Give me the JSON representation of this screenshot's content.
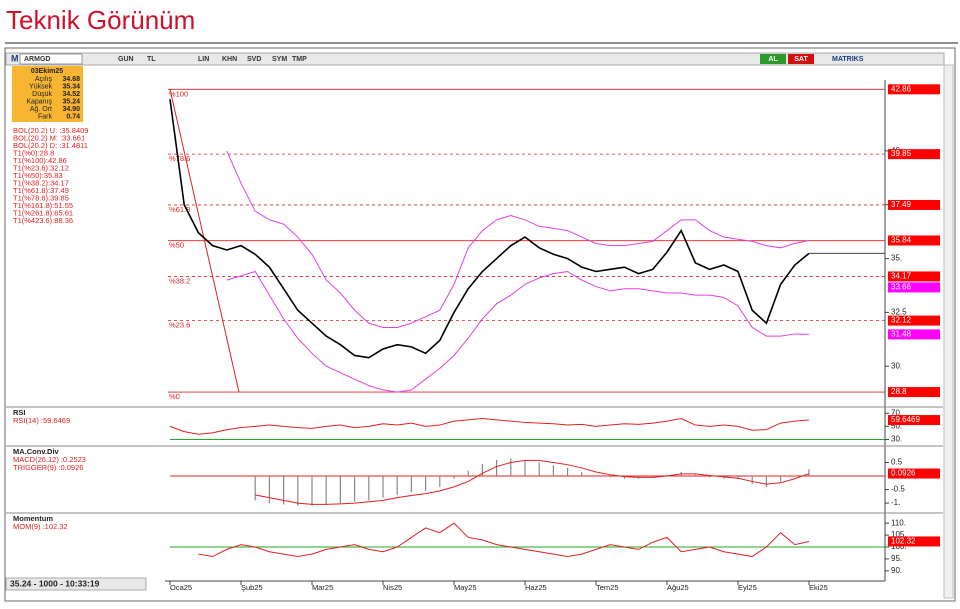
{
  "header": {
    "title": "Teknik Görünüm"
  },
  "toolbar": {
    "logo": "M",
    "symbol": "ARMGD",
    "buttons": [
      "GUN",
      "TL",
      "LIN",
      "KHN",
      "SVD",
      "SYM",
      "TMP"
    ],
    "actions": [
      "AL",
      "SAT"
    ],
    "brand": "MATRIKS"
  },
  "info": {
    "date": "03Ekim25",
    "rows": [
      [
        "Açılış",
        "34.68"
      ],
      [
        "Yüksek",
        "35.34"
      ],
      [
        "Düşük",
        "34.52"
      ],
      [
        "Kapanış",
        "35.24"
      ],
      [
        "Ağ. Ort",
        "34.90"
      ],
      [
        "Fark",
        "0.74"
      ]
    ]
  },
  "legend": [
    "BOL(20.2) U: :35.8409",
    "BOL(20.2) M: :33.661",
    "BOL(20.2) D: :31.4811",
    "T1(%0):28.8",
    "T1(%100):42.86",
    "T1(%23.6):32.12",
    "T1(%50):35.83",
    "T1(%38.2):34.17",
    "T1(%61.8):37.49",
    "T1(%78.6):39.85",
    "T1(%161.8):51.55",
    "T1(%261.8):65.61",
    "T1(%423.6):88.36"
  ],
  "status": "35.24 - 1000 - 10:33:19",
  "chart_data": [
    {
      "type": "line",
      "categories": [
        "Oca25",
        null,
        null,
        null,
        null,
        "Şub25",
        null,
        null,
        null,
        null,
        "Mar25",
        null,
        null,
        null,
        null,
        "Nis25",
        null,
        null,
        null,
        null,
        "May25",
        null,
        null,
        null,
        null,
        "Haz25",
        null,
        null,
        null,
        null,
        "Tem25",
        null,
        null,
        null,
        null,
        "Ağu25",
        null,
        null,
        null,
        null,
        "Eyl25",
        null,
        null,
        null,
        null,
        "Eki25"
      ],
      "series": [
        {
          "color": "#000000",
          "values": [
            42.4,
            37.5,
            36.2,
            35.6,
            35.4,
            35.6,
            35.2,
            34.6,
            33.6,
            32.6,
            32.0,
            31.4,
            31.0,
            30.5,
            30.4,
            30.8,
            31.0,
            30.9,
            30.6,
            31.2,
            32.5,
            33.6,
            34.4,
            35.0,
            35.6,
            36.0,
            35.5,
            35.2,
            35.0,
            34.6,
            34.4,
            34.5,
            34.6,
            34.3,
            34.5,
            35.3,
            36.3,
            34.8,
            34.5,
            34.7,
            34.4,
            32.6,
            32.0,
            33.8,
            34.7,
            35.24
          ]
        },
        {
          "color": "#e040e0",
          "values": [
            null,
            null,
            null,
            null,
            40.0,
            38.5,
            37.2,
            36.8,
            36.6,
            36.0,
            35.2,
            34.0,
            33.4,
            32.6,
            32.0,
            31.8,
            31.8,
            32.0,
            32.3,
            32.6,
            33.8,
            35.5,
            36.3,
            36.8,
            37.0,
            36.8,
            36.5,
            36.4,
            36.3,
            36.0,
            35.7,
            35.6,
            35.6,
            35.7,
            35.8,
            36.3,
            36.8,
            36.8,
            36.3,
            36.0,
            35.9,
            35.8,
            35.6,
            35.5,
            35.7,
            35.84
          ]
        },
        {
          "color": "#e040e0",
          "values": [
            null,
            null,
            null,
            null,
            34.0,
            34.2,
            34.4,
            33.3,
            32.2,
            31.3,
            30.6,
            30.0,
            29.7,
            29.4,
            29.1,
            28.9,
            28.8,
            28.9,
            29.4,
            29.9,
            30.5,
            31.3,
            32.2,
            32.9,
            33.3,
            33.8,
            34.1,
            34.3,
            34.4,
            34.0,
            33.7,
            33.5,
            33.6,
            33.6,
            33.5,
            33.4,
            33.4,
            33.3,
            33.3,
            33.2,
            32.8,
            31.8,
            31.4,
            31.4,
            31.5,
            31.48
          ]
        }
      ],
      "ylim": [
        28.2,
        43.2
      ],
      "yticks": [
        {
          "value": 30,
          "label": "30."
        },
        32.5,
        {
          "value": 35,
          "label": "35."
        },
        37.5,
        {
          "value": 40,
          "label": "40."
        }
      ],
      "levels": [
        {
          "label": "%100",
          "value": 42.86,
          "dashed": false
        },
        {
          "label": "%78.6",
          "value": 39.85,
          "dashed": true
        },
        {
          "label": "%61.8",
          "value": 37.49,
          "dashed": true
        },
        {
          "label": "%50",
          "value": 35.83,
          "dashed": false
        },
        {
          "label": "%38.2",
          "value": 34.17,
          "dashed": true
        },
        {
          "label": "%23.6",
          "value": 32.12,
          "dashed": true
        },
        {
          "label": "%0",
          "value": 28.8,
          "dashed": false
        }
      ],
      "price_labels": [
        {
          "value": 42.86,
          "color": "#ff0000"
        },
        {
          "value": 39.85,
          "color": "#ff0000"
        },
        {
          "value": 37.49,
          "color": "#ff0000"
        },
        {
          "value": 35.84,
          "color": "#ff0000"
        },
        {
          "value": 34.17,
          "color": "#ff0000"
        },
        {
          "value": 33.66,
          "color": "#ff00ff"
        },
        {
          "value": 32.12,
          "color": "#ff0000"
        },
        {
          "value": 31.48,
          "color": "#ff00ff"
        },
        {
          "value": 28.8,
          "color": "#ff0000"
        }
      ]
    },
    {
      "type": "line",
      "title": "RSI",
      "legend": [
        "RSI(14)   :59.6469"
      ],
      "series": [
        {
          "color": "#e02020",
          "values": [
            50,
            42,
            38,
            40,
            45,
            48,
            50,
            52,
            50,
            48,
            47,
            50,
            52,
            48,
            50,
            54,
            52,
            55,
            50,
            52,
            58,
            60,
            62,
            60,
            58,
            56,
            55,
            54,
            52,
            53,
            50,
            52,
            54,
            53,
            55,
            58,
            62,
            52,
            50,
            52,
            50,
            44,
            45,
            55,
            58,
            59.6469
          ]
        }
      ],
      "ylim": [
        20,
        75
      ],
      "yticks": [
        {
          "value": 30,
          "label": "30."
        },
        {
          "value": 50,
          "label": "50."
        },
        {
          "value": 70,
          "label": "70."
        }
      ],
      "reference": 30,
      "reference_color": "#22aa22",
      "last_label": 59.6469
    },
    {
      "type": "macd",
      "title": "MA.Conv.Div",
      "legend": [
        "MACD(26.12)   :0.2523",
        "TRIGGER(9)   :0.0926"
      ],
      "series": [
        {
          "color": "#888888",
          "values": [
            null,
            null,
            null,
            null,
            null,
            null,
            -0.9,
            -1.0,
            -1.05,
            -1.1,
            -1.1,
            -1.05,
            -1.0,
            -0.95,
            -0.9,
            -0.8,
            -0.7,
            -0.6,
            -0.55,
            -0.4,
            -0.1,
            0.2,
            0.45,
            0.6,
            0.65,
            0.6,
            0.5,
            0.4,
            0.3,
            0.15,
            0.0,
            -0.05,
            -0.1,
            -0.1,
            -0.05,
            0.05,
            0.15,
            0.05,
            -0.05,
            -0.1,
            -0.1,
            -0.3,
            -0.4,
            -0.2,
            0.0,
            0.2523
          ]
        },
        {
          "color": "#e02020",
          "values": [
            null,
            null,
            null,
            null,
            null,
            null,
            -0.7,
            -0.8,
            -0.9,
            -1.0,
            -1.05,
            -1.05,
            -1.03,
            -1.0,
            -0.95,
            -0.9,
            -0.8,
            -0.72,
            -0.65,
            -0.55,
            -0.4,
            -0.2,
            0.1,
            0.35,
            0.5,
            0.58,
            0.58,
            0.5,
            0.42,
            0.3,
            0.15,
            0.05,
            -0.02,
            -0.05,
            -0.05,
            0.0,
            0.08,
            0.08,
            0.02,
            -0.03,
            -0.08,
            -0.2,
            -0.3,
            -0.25,
            -0.1,
            0.0926
          ]
        }
      ],
      "ylim": [
        -1.33,
        1.0
      ],
      "yticks": [
        {
          "value": -1,
          "label": "-1."
        },
        -0.5,
        0.5
      ],
      "reference": 0,
      "reference_color": "#e02020",
      "last_label": 0.0926
    },
    {
      "type": "line",
      "title": "Momentum",
      "legend": [
        "MOM(9)   :102.32"
      ],
      "series": [
        {
          "color": "#e02020",
          "values": [
            null,
            null,
            97,
            96,
            99,
            101,
            100,
            98,
            97,
            96,
            97,
            99,
            100,
            101,
            99,
            98,
            100,
            104,
            108,
            106,
            110,
            104,
            103,
            101,
            100,
            99,
            98,
            97,
            96,
            97,
            99,
            101,
            100,
            99,
            102,
            104,
            98,
            99,
            100,
            98,
            97,
            96,
            100,
            106,
            101,
            102.32
          ]
        }
      ],
      "ylim": [
        87,
        113
      ],
      "yticks": [
        {
          "value": 90,
          "label": "90."
        },
        {
          "value": 95,
          "label": "95."
        },
        {
          "value": 100,
          "label": "100."
        },
        {
          "value": 105,
          "label": "105."
        },
        {
          "value": 110,
          "label": "110."
        }
      ],
      "reference": 100,
      "reference_color": "#22aa22",
      "last_label": 102.32
    }
  ]
}
